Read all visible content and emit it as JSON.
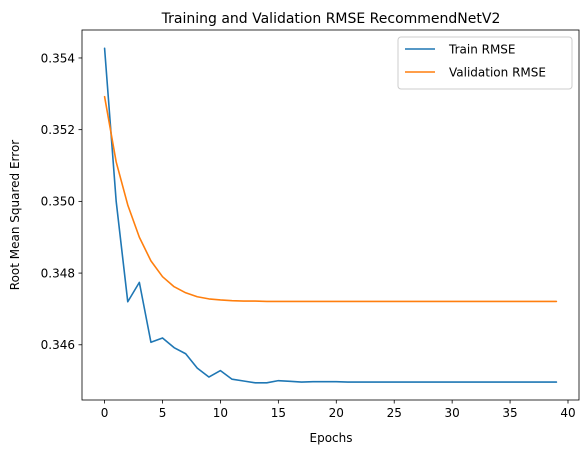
{
  "chart_data": {
    "type": "line",
    "title": "Training and Validation RMSE RecommendNetV2",
    "xlabel": "Epochs",
    "ylabel": "Root Mean Squared Error",
    "xlim": [
      -1.95,
      40.95
    ],
    "ylim": [
      0.34446,
      0.35478
    ],
    "x_ticks": [
      0,
      5,
      10,
      15,
      20,
      25,
      30,
      35,
      40
    ],
    "y_ticks": [
      0.346,
      0.348,
      0.35,
      0.352,
      0.354
    ],
    "y_tick_labels": [
      "0.346",
      "0.348",
      "0.350",
      "0.352",
      "0.354"
    ],
    "grid": false,
    "legend_position": "top-right",
    "x": [
      0,
      1,
      2,
      3,
      4,
      5,
      6,
      7,
      8,
      9,
      10,
      11,
      12,
      13,
      14,
      15,
      16,
      17,
      18,
      19,
      20,
      21,
      22,
      23,
      24,
      25,
      26,
      27,
      28,
      29,
      30,
      31,
      32,
      33,
      34,
      35,
      36,
      37,
      38,
      39
    ],
    "series": [
      {
        "name": "Train RMSE",
        "color": "#1f77b4",
        "values": [
          0.35427,
          0.35,
          0.3472,
          0.34774,
          0.34607,
          0.34619,
          0.34592,
          0.34575,
          0.34535,
          0.3451,
          0.34528,
          0.34504,
          0.34499,
          0.34494,
          0.34494,
          0.345,
          0.34498,
          0.34496,
          0.34497,
          0.34497,
          0.34497,
          0.34496,
          0.34496,
          0.34496,
          0.34496,
          0.34496,
          0.34496,
          0.34496,
          0.34496,
          0.34496,
          0.34496,
          0.34496,
          0.34496,
          0.34496,
          0.34496,
          0.34496,
          0.34496,
          0.34496,
          0.34496,
          0.34496
        ]
      },
      {
        "name": "Validation RMSE",
        "color": "#ff7f0e",
        "values": [
          0.35292,
          0.3511,
          0.3499,
          0.349,
          0.34834,
          0.3479,
          0.34762,
          0.34745,
          0.34734,
          0.34728,
          0.34725,
          0.34723,
          0.34722,
          0.34722,
          0.34721,
          0.34721,
          0.34721,
          0.34721,
          0.34721,
          0.34721,
          0.34721,
          0.34721,
          0.34721,
          0.34721,
          0.34721,
          0.34721,
          0.34721,
          0.34721,
          0.34721,
          0.34721,
          0.34721,
          0.34721,
          0.34721,
          0.34721,
          0.34721,
          0.34721,
          0.34721,
          0.34721,
          0.34721,
          0.34721
        ]
      }
    ]
  }
}
